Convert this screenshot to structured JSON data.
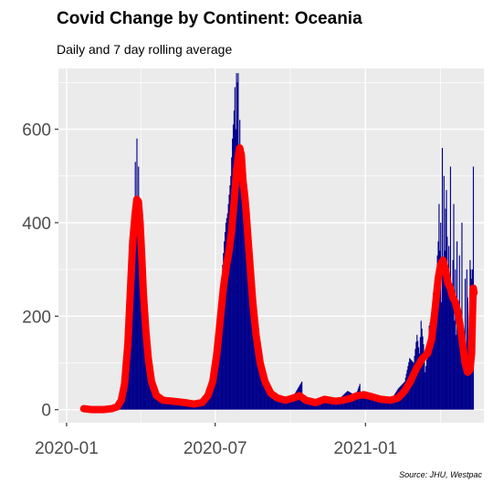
{
  "chart_data": {
    "type": "bar",
    "title": "Covid Change by Continent: Oceania",
    "subtitle": "Daily and 7 day rolling average",
    "caption": "Source: JHU, Westpac",
    "xlabel": "",
    "ylabel": "",
    "x_range": [
      "2019-12-22",
      "2021-05-26"
    ],
    "ylim": [
      -28,
      730
    ],
    "grid": true,
    "legend": "none",
    "y_ticks": [
      0,
      200,
      400,
      600
    ],
    "x_ticks": [
      {
        "date": "2020-01-01",
        "label": "2020-01"
      },
      {
        "date": "2020-07-01",
        "label": "2020-07"
      },
      {
        "date": "2021-01-01",
        "label": "2021-01"
      }
    ],
    "series": [
      {
        "role": "daily",
        "style": "bar",
        "color": "#00008b",
        "points": [
          [
            "2020-01-25",
            0
          ],
          [
            "2020-02-15",
            0
          ],
          [
            "2020-03-01",
            8
          ],
          [
            "2020-03-08",
            25
          ],
          [
            "2020-03-15",
            80
          ],
          [
            "2020-03-18",
            130
          ],
          [
            "2020-03-21",
            250
          ],
          [
            "2020-03-24",
            410
          ],
          [
            "2020-03-25",
            530
          ],
          [
            "2020-03-26",
            390
          ],
          [
            "2020-03-27",
            580
          ],
          [
            "2020-03-28",
            450
          ],
          [
            "2020-03-29",
            520
          ],
          [
            "2020-03-30",
            400
          ],
          [
            "2020-03-31",
            360
          ],
          [
            "2020-04-01",
            400
          ],
          [
            "2020-04-02",
            330
          ],
          [
            "2020-04-03",
            340
          ],
          [
            "2020-04-04",
            260
          ],
          [
            "2020-04-06",
            200
          ],
          [
            "2020-04-08",
            150
          ],
          [
            "2020-04-10",
            110
          ],
          [
            "2020-04-13",
            70
          ],
          [
            "2020-04-17",
            45
          ],
          [
            "2020-04-22",
            25
          ],
          [
            "2020-05-01",
            20
          ],
          [
            "2020-05-15",
            20
          ],
          [
            "2020-05-25",
            15
          ],
          [
            "2020-06-05",
            10
          ],
          [
            "2020-06-15",
            15
          ],
          [
            "2020-06-22",
            30
          ],
          [
            "2020-06-28",
            70
          ],
          [
            "2020-07-02",
            120
          ],
          [
            "2020-07-05",
            180
          ],
          [
            "2020-07-08",
            240
          ],
          [
            "2020-07-10",
            310
          ],
          [
            "2020-07-12",
            360
          ],
          [
            "2020-07-14",
            400
          ],
          [
            "2020-07-16",
            420
          ],
          [
            "2020-07-18",
            460
          ],
          [
            "2020-07-20",
            500
          ],
          [
            "2020-07-22",
            580
          ],
          [
            "2020-07-24",
            640
          ],
          [
            "2020-07-25",
            690
          ],
          [
            "2020-07-26",
            600
          ],
          [
            "2020-07-27",
            720
          ],
          [
            "2020-07-28",
            700
          ],
          [
            "2020-07-29",
            720
          ],
          [
            "2020-07-30",
            560
          ],
          [
            "2020-07-31",
            620
          ],
          [
            "2020-08-01",
            520
          ],
          [
            "2020-08-02",
            480
          ],
          [
            "2020-08-03",
            520
          ],
          [
            "2020-08-04",
            560
          ],
          [
            "2020-08-05",
            510
          ],
          [
            "2020-08-06",
            470
          ],
          [
            "2020-08-07",
            420
          ],
          [
            "2020-08-09",
            390
          ],
          [
            "2020-08-11",
            350
          ],
          [
            "2020-08-13",
            300
          ],
          [
            "2020-08-16",
            240
          ],
          [
            "2020-08-19",
            180
          ],
          [
            "2020-08-22",
            130
          ],
          [
            "2020-08-25",
            90
          ],
          [
            "2020-08-29",
            60
          ],
          [
            "2020-09-03",
            40
          ],
          [
            "2020-09-10",
            25
          ],
          [
            "2020-09-20",
            20
          ],
          [
            "2020-10-01",
            18
          ],
          [
            "2020-10-15",
            60
          ],
          [
            "2020-10-16",
            15
          ],
          [
            "2020-11-01",
            20
          ],
          [
            "2020-11-15",
            20
          ],
          [
            "2020-12-01",
            25
          ],
          [
            "2020-12-10",
            40
          ],
          [
            "2020-12-20",
            30
          ],
          [
            "2020-12-25",
            55
          ],
          [
            "2020-12-26",
            25
          ],
          [
            "2021-01-05",
            35
          ],
          [
            "2021-01-15",
            20
          ],
          [
            "2021-02-01",
            20
          ],
          [
            "2021-02-10",
            45
          ],
          [
            "2021-02-18",
            60
          ],
          [
            "2021-02-24",
            110
          ],
          [
            "2021-03-01",
            100
          ],
          [
            "2021-03-05",
            160
          ],
          [
            "2021-03-08",
            120
          ],
          [
            "2021-03-10",
            190
          ],
          [
            "2021-03-13",
            140
          ],
          [
            "2021-03-15",
            80
          ],
          [
            "2021-03-18",
            120
          ],
          [
            "2021-03-20",
            180
          ],
          [
            "2021-03-23",
            200
          ],
          [
            "2021-03-25",
            250
          ],
          [
            "2021-03-27",
            240
          ],
          [
            "2021-03-29",
            300
          ],
          [
            "2021-03-31",
            360
          ],
          [
            "2021-04-01",
            440
          ],
          [
            "2021-04-02",
            340
          ],
          [
            "2021-04-03",
            400
          ],
          [
            "2021-04-04",
            230
          ],
          [
            "2021-04-05",
            560
          ],
          [
            "2021-04-06",
            310
          ],
          [
            "2021-04-07",
            500
          ],
          [
            "2021-04-08",
            340
          ],
          [
            "2021-04-09",
            430
          ],
          [
            "2021-04-10",
            470
          ],
          [
            "2021-04-11",
            370
          ],
          [
            "2021-04-12",
            300
          ],
          [
            "2021-04-13",
            350
          ],
          [
            "2021-04-14",
            280
          ],
          [
            "2021-04-15",
            520
          ],
          [
            "2021-04-16",
            240
          ],
          [
            "2021-04-17",
            250
          ],
          [
            "2021-04-18",
            320
          ],
          [
            "2021-04-19",
            440
          ],
          [
            "2021-04-20",
            190
          ],
          [
            "2021-04-21",
            300
          ],
          [
            "2021-04-22",
            160
          ],
          [
            "2021-04-23",
            360
          ],
          [
            "2021-04-24",
            220
          ],
          [
            "2021-04-25",
            200
          ],
          [
            "2021-04-26",
            330
          ],
          [
            "2021-04-27",
            150
          ],
          [
            "2021-04-28",
            120
          ],
          [
            "2021-04-29",
            400
          ],
          [
            "2021-04-30",
            110
          ],
          [
            "2021-05-01",
            90
          ],
          [
            "2021-05-02",
            130
          ],
          [
            "2021-05-03",
            280
          ],
          [
            "2021-05-04",
            100
          ],
          [
            "2021-05-05",
            300
          ],
          [
            "2021-05-06",
            240
          ],
          [
            "2021-05-07",
            80
          ],
          [
            "2021-05-08",
            200
          ],
          [
            "2021-05-09",
            320
          ],
          [
            "2021-05-10",
            300
          ],
          [
            "2021-05-11",
            280
          ],
          [
            "2021-05-12",
            300
          ],
          [
            "2021-05-13",
            520
          ]
        ]
      },
      {
        "role": "7-day rolling average",
        "style": "line",
        "color": "#ff0000",
        "points": [
          [
            "2020-01-22",
            2
          ],
          [
            "2020-02-01",
            0
          ],
          [
            "2020-02-15",
            0
          ],
          [
            "2020-02-25",
            2
          ],
          [
            "2020-03-03",
            6
          ],
          [
            "2020-03-08",
            20
          ],
          [
            "2020-03-12",
            55
          ],
          [
            "2020-03-16",
            140
          ],
          [
            "2020-03-19",
            250
          ],
          [
            "2020-03-22",
            360
          ],
          [
            "2020-03-25",
            420
          ],
          [
            "2020-03-27",
            450
          ],
          [
            "2020-03-29",
            445
          ],
          [
            "2020-03-31",
            400
          ],
          [
            "2020-04-02",
            330
          ],
          [
            "2020-04-04",
            250
          ],
          [
            "2020-04-07",
            170
          ],
          [
            "2020-04-10",
            110
          ],
          [
            "2020-04-14",
            60
          ],
          [
            "2020-04-20",
            30
          ],
          [
            "2020-04-28",
            20
          ],
          [
            "2020-05-10",
            18
          ],
          [
            "2020-05-25",
            15
          ],
          [
            "2020-06-05",
            12
          ],
          [
            "2020-06-15",
            15
          ],
          [
            "2020-06-22",
            30
          ],
          [
            "2020-06-28",
            60
          ],
          [
            "2020-07-03",
            120
          ],
          [
            "2020-07-07",
            190
          ],
          [
            "2020-07-11",
            260
          ],
          [
            "2020-07-15",
            310
          ],
          [
            "2020-07-18",
            340
          ],
          [
            "2020-07-21",
            380
          ],
          [
            "2020-07-24",
            440
          ],
          [
            "2020-07-27",
            510
          ],
          [
            "2020-07-29",
            540
          ],
          [
            "2020-07-31",
            560
          ],
          [
            "2020-08-02",
            545
          ],
          [
            "2020-08-04",
            490
          ],
          [
            "2020-08-06",
            460
          ],
          [
            "2020-08-08",
            420
          ],
          [
            "2020-08-10",
            370
          ],
          [
            "2020-08-13",
            300
          ],
          [
            "2020-08-16",
            230
          ],
          [
            "2020-08-20",
            160
          ],
          [
            "2020-08-25",
            100
          ],
          [
            "2020-08-31",
            60
          ],
          [
            "2020-09-07",
            35
          ],
          [
            "2020-09-15",
            25
          ],
          [
            "2020-09-25",
            20
          ],
          [
            "2020-10-05",
            25
          ],
          [
            "2020-10-12",
            30
          ],
          [
            "2020-10-20",
            20
          ],
          [
            "2020-11-01",
            15
          ],
          [
            "2020-11-12",
            22
          ],
          [
            "2020-11-25",
            18
          ],
          [
            "2020-12-05",
            20
          ],
          [
            "2020-12-15",
            25
          ],
          [
            "2020-12-22",
            30
          ],
          [
            "2020-12-30",
            32
          ],
          [
            "2021-01-08",
            28
          ],
          [
            "2021-01-20",
            22
          ],
          [
            "2021-02-01",
            20
          ],
          [
            "2021-02-10",
            25
          ],
          [
            "2021-02-18",
            40
          ],
          [
            "2021-02-25",
            60
          ],
          [
            "2021-03-05",
            90
          ],
          [
            "2021-03-12",
            110
          ],
          [
            "2021-03-18",
            120
          ],
          [
            "2021-03-23",
            150
          ],
          [
            "2021-03-27",
            210
          ],
          [
            "2021-03-31",
            280
          ],
          [
            "2021-04-03",
            310
          ],
          [
            "2021-04-06",
            320
          ],
          [
            "2021-04-09",
            300
          ],
          [
            "2021-04-12",
            270
          ],
          [
            "2021-04-15",
            260
          ],
          [
            "2021-04-18",
            240
          ],
          [
            "2021-04-21",
            230
          ],
          [
            "2021-04-24",
            210
          ],
          [
            "2021-04-27",
            180
          ],
          [
            "2021-04-30",
            140
          ],
          [
            "2021-05-03",
            100
          ],
          [
            "2021-05-06",
            80
          ],
          [
            "2021-05-09",
            85
          ],
          [
            "2021-05-11",
            120
          ],
          [
            "2021-05-12",
            200
          ],
          [
            "2021-05-13",
            260
          ],
          [
            "2021-05-14",
            250
          ]
        ]
      }
    ]
  }
}
